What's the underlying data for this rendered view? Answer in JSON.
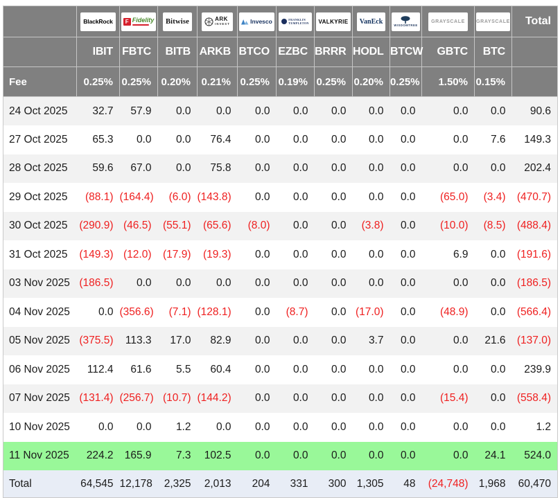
{
  "colors": {
    "header_bg": "#808080",
    "header_text": "#ffffff",
    "header_border": "#c6c6c6",
    "row_stripe": "#f2f2f2",
    "highlight_green": "#99f899",
    "total_row_bg": "#e8edf6",
    "negative_red": "#ef2020",
    "body_text": "#1b1b1b"
  },
  "chart_data": {
    "type": "table",
    "title": "Bitcoin ETF daily flows by fund",
    "fee_label": "Fee",
    "total_label": "Total",
    "columns": [
      {
        "key": "ibit",
        "issuer": "BlackRock",
        "ticker": "IBIT",
        "fee": "0.25%"
      },
      {
        "key": "fbtc",
        "issuer": "Fidelity",
        "ticker": "FBTC",
        "fee": "0.25%"
      },
      {
        "key": "bitb",
        "issuer": "Bitwise",
        "ticker": "BITB",
        "fee": "0.20%"
      },
      {
        "key": "arkb",
        "issuer": "ARK INVEST",
        "ticker": "ARKB",
        "fee": "0.21%"
      },
      {
        "key": "btco",
        "issuer": "Invesco",
        "ticker": "BTCO",
        "fee": "0.25%"
      },
      {
        "key": "ezbc",
        "issuer": "FRANKLIN TEMPLETON",
        "ticker": "EZBC",
        "fee": "0.19%"
      },
      {
        "key": "brrr",
        "issuer": "VALKYRIE",
        "ticker": "BRRR",
        "fee": "0.25%"
      },
      {
        "key": "hodl",
        "issuer": "VanEck",
        "ticker": "HODL",
        "fee": "0.20%"
      },
      {
        "key": "btcw",
        "issuer": "WISDOMTREE",
        "ticker": "BTCW",
        "fee": "0.25%"
      },
      {
        "key": "gbtc",
        "issuer": "GRAYSCALE",
        "ticker": "GBTC",
        "fee": "1.50%"
      },
      {
        "key": "btc",
        "issuer": "GRAYSCALE",
        "ticker": "BTC",
        "fee": "0.15%"
      }
    ],
    "rows": [
      {
        "date": "24 Oct 2025",
        "values": [
          "32.7",
          "57.9",
          "0.0",
          "0.0",
          "0.0",
          "0.0",
          "0.0",
          "0.0",
          "0.0",
          "0.0",
          "0.0"
        ],
        "total": "90.6",
        "highlight": false
      },
      {
        "date": "27 Oct 2025",
        "values": [
          "65.3",
          "0.0",
          "0.0",
          "76.4",
          "0.0",
          "0.0",
          "0.0",
          "0.0",
          "0.0",
          "0.0",
          "7.6"
        ],
        "total": "149.3",
        "highlight": false
      },
      {
        "date": "28 Oct 2025",
        "values": [
          "59.6",
          "67.0",
          "0.0",
          "75.8",
          "0.0",
          "0.0",
          "0.0",
          "0.0",
          "0.0",
          "0.0",
          "0.0"
        ],
        "total": "202.4",
        "highlight": false
      },
      {
        "date": "29 Oct 2025",
        "values": [
          "(88.1)",
          "(164.4)",
          "(6.0)",
          "(143.8)",
          "0.0",
          "0.0",
          "0.0",
          "0.0",
          "0.0",
          "(65.0)",
          "(3.4)"
        ],
        "total": "(470.7)",
        "highlight": false
      },
      {
        "date": "30 Oct 2025",
        "values": [
          "(290.9)",
          "(46.5)",
          "(55.1)",
          "(65.6)",
          "(8.0)",
          "0.0",
          "0.0",
          "(3.8)",
          "0.0",
          "(10.0)",
          "(8.5)"
        ],
        "total": "(488.4)",
        "highlight": false
      },
      {
        "date": "31 Oct 2025",
        "values": [
          "(149.3)",
          "(12.0)",
          "(17.9)",
          "(19.3)",
          "0.0",
          "0.0",
          "0.0",
          "0.0",
          "0.0",
          "6.9",
          "0.0"
        ],
        "total": "(191.6)",
        "highlight": false
      },
      {
        "date": "03 Nov 2025",
        "values": [
          "(186.5)",
          "0.0",
          "0.0",
          "0.0",
          "0.0",
          "0.0",
          "0.0",
          "0.0",
          "0.0",
          "0.0",
          "0.0"
        ],
        "total": "(186.5)",
        "highlight": false
      },
      {
        "date": "04 Nov 2025",
        "values": [
          "0.0",
          "(356.6)",
          "(7.1)",
          "(128.1)",
          "0.0",
          "(8.7)",
          "0.0",
          "(17.0)",
          "0.0",
          "(48.9)",
          "0.0"
        ],
        "total": "(566.4)",
        "highlight": false
      },
      {
        "date": "05 Nov 2025",
        "values": [
          "(375.5)",
          "113.3",
          "17.0",
          "82.9",
          "0.0",
          "0.0",
          "0.0",
          "3.7",
          "0.0",
          "0.0",
          "21.6"
        ],
        "total": "(137.0)",
        "highlight": false
      },
      {
        "date": "06 Nov 2025",
        "values": [
          "112.4",
          "61.6",
          "5.5",
          "60.4",
          "0.0",
          "0.0",
          "0.0",
          "0.0",
          "0.0",
          "0.0",
          "0.0"
        ],
        "total": "239.9",
        "highlight": false
      },
      {
        "date": "07 Nov 2025",
        "values": [
          "(131.4)",
          "(256.7)",
          "(10.7)",
          "(144.2)",
          "0.0",
          "0.0",
          "0.0",
          "0.0",
          "0.0",
          "(15.4)",
          "0.0"
        ],
        "total": "(558.4)",
        "highlight": false
      },
      {
        "date": "10 Nov 2025",
        "values": [
          "0.0",
          "0.0",
          "1.2",
          "0.0",
          "0.0",
          "0.0",
          "0.0",
          "0.0",
          "0.0",
          "0.0",
          "0.0"
        ],
        "total": "1.2",
        "highlight": false
      },
      {
        "date": "11 Nov 2025",
        "values": [
          "224.2",
          "165.9",
          "7.3",
          "102.5",
          "0.0",
          "0.0",
          "0.0",
          "0.0",
          "0.0",
          "0.0",
          "24.1"
        ],
        "total": "524.0",
        "highlight": true
      }
    ],
    "totals": {
      "label": "Total",
      "values": [
        "64,545",
        "12,178",
        "2,325",
        "2,013",
        "204",
        "331",
        "300",
        "1,305",
        "48",
        "(24,748)",
        "1,968"
      ],
      "total": "60,470"
    }
  }
}
